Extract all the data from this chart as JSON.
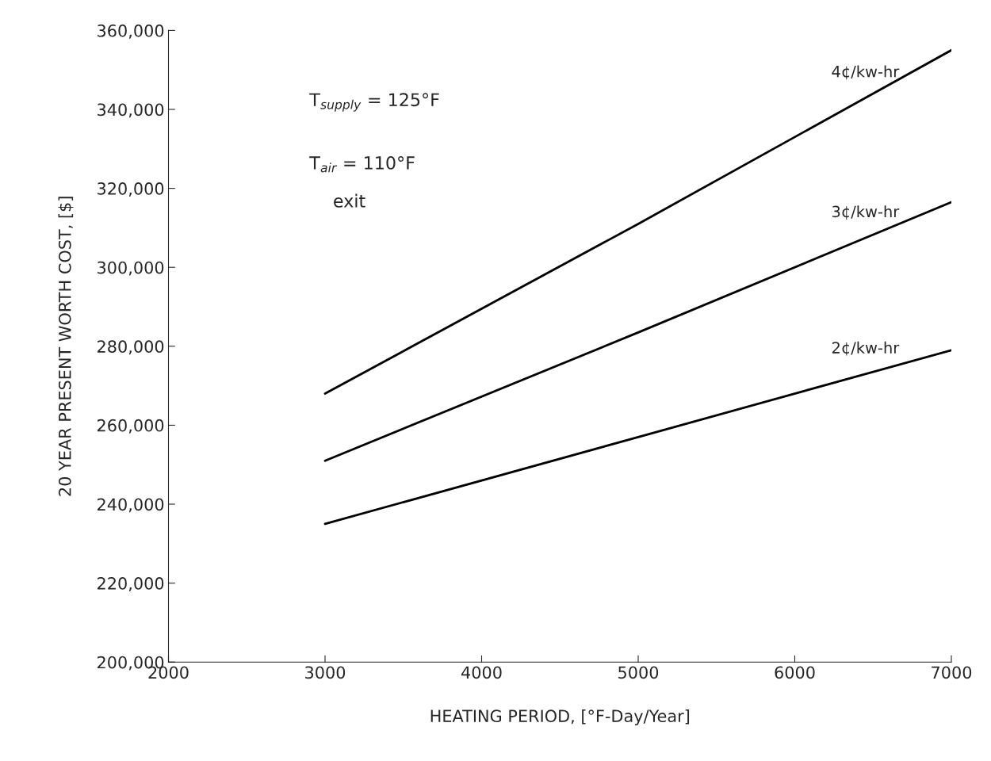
{
  "chart_data": {
    "type": "line",
    "xlabel": "HEATING PERIOD, [°F-Day/Year]",
    "ylabel": "20 YEAR PRESENT WORTH COST, [$]",
    "x": [
      3000,
      5000,
      7000
    ],
    "series": [
      {
        "name": "4¢/kw-hr",
        "color": "#000000",
        "values": [
          268000,
          311000,
          355000
        ]
      },
      {
        "name": "3¢/kw-hr",
        "color": "#000000",
        "values": [
          251000,
          283500,
          316500
        ]
      },
      {
        "name": "2¢/kw-hr",
        "color": "#000000",
        "values": [
          235000,
          257000,
          279000
        ]
      }
    ],
    "xlim": [
      2000,
      7000
    ],
    "xticks": [
      2000,
      3000,
      4000,
      5000,
      6000,
      7000
    ],
    "ylim": [
      200000,
      360000
    ],
    "yticks": [
      {
        "value": 200000,
        "label": "200,000"
      },
      {
        "value": 220000,
        "label": "220,000"
      },
      {
        "value": 240000,
        "label": "240,000"
      },
      {
        "value": 260000,
        "label": "260,000"
      },
      {
        "value": 280000,
        "label": "280,000"
      },
      {
        "value": 300000,
        "label": "300,000"
      },
      {
        "value": 320000,
        "label": "320,000"
      },
      {
        "value": 340000,
        "label": "340,000"
      },
      {
        "value": 360000,
        "label": "360,000"
      }
    ],
    "annotations": [
      "T$_{supply}$ = 125°F",
      "T$_{air}$ = 110°F",
      "exit"
    ],
    "grid": false,
    "legend": false,
    "marker": "none",
    "line_style": "solid"
  }
}
